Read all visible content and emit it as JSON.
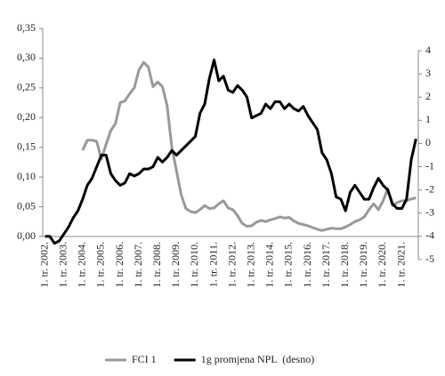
{
  "chart_data": {
    "type": "line",
    "categories": [
      "1. tr. 2002.",
      null,
      null,
      null,
      "1. tr. 2003.",
      null,
      null,
      null,
      "1. tr. 2004.",
      null,
      null,
      null,
      "1. tr. 2005.",
      null,
      null,
      null,
      "1. tr. 2006.",
      null,
      null,
      null,
      "1. tr. 2007.",
      null,
      null,
      null,
      "1. tr. 2008.",
      null,
      null,
      null,
      "1. tr. 2009.",
      null,
      null,
      null,
      "1. tr. 2010.",
      null,
      null,
      null,
      "1. tr. 2011.",
      null,
      null,
      null,
      "1. tr. 2012.",
      null,
      null,
      null,
      "1. tr. 2013.",
      null,
      null,
      null,
      "1. tr. 2014.",
      null,
      null,
      null,
      "1. tr. 2015.",
      null,
      null,
      null,
      "1. tr. 2016.",
      null,
      null,
      null,
      "1. tr. 2017.",
      null,
      null,
      null,
      "1. tr. 2018.",
      null,
      null,
      null,
      "1. tr. 2019.",
      null,
      null,
      null,
      "1. tr. 2020.",
      null,
      null,
      null,
      "1. tr. 2021.",
      null,
      null,
      null
    ],
    "series": [
      {
        "name": "FCI 1",
        "color": "#999999",
        "values": [
          null,
          null,
          null,
          null,
          null,
          null,
          null,
          null,
          0.145,
          0.162,
          0.162,
          0.16,
          0.13,
          0.155,
          0.178,
          0.19,
          0.225,
          0.228,
          0.24,
          0.25,
          0.28,
          0.293,
          0.285,
          0.252,
          0.26,
          0.252,
          0.22,
          0.15,
          0.11,
          0.07,
          0.047,
          0.042,
          0.04,
          0.045,
          0.052,
          0.047,
          0.048,
          0.055,
          0.06,
          0.048,
          0.045,
          0.035,
          0.022,
          0.017,
          0.018,
          0.024,
          0.027,
          0.025,
          0.028,
          0.03,
          0.033,
          0.031,
          0.032,
          0.026,
          0.022,
          0.02,
          0.018,
          0.015,
          0.012,
          0.01,
          0.012,
          0.014,
          0.013,
          0.013,
          0.016,
          0.02,
          0.025,
          0.028,
          0.033,
          0.045,
          0.055,
          0.045,
          0.06,
          0.08,
          0.052,
          0.057,
          0.06,
          0.06,
          0.063,
          0.065
        ]
      },
      {
        "name": "1g promjena NPL  (desno)",
        "color": "#000000",
        "axis": "y2",
        "values": [
          -4.0,
          -4.0,
          -4.3,
          -4.2,
          -3.9,
          -3.6,
          -3.2,
          -2.9,
          -2.4,
          -1.8,
          -1.5,
          -1.0,
          -0.5,
          -0.5,
          -1.3,
          -1.6,
          -1.8,
          -1.7,
          -1.3,
          -1.4,
          -1.3,
          -1.1,
          -1.1,
          -1.0,
          -0.6,
          -0.8,
          -0.6,
          -0.3,
          -0.5,
          -0.3,
          -0.1,
          0.1,
          0.3,
          1.3,
          1.7,
          2.8,
          3.6,
          2.7,
          2.9,
          2.3,
          2.2,
          2.5,
          2.3,
          2.0,
          1.1,
          1.2,
          1.3,
          1.7,
          1.5,
          1.8,
          1.8,
          1.5,
          1.7,
          1.5,
          1.4,
          1.6,
          1.2,
          0.9,
          0.6,
          -0.4,
          -0.7,
          -1.3,
          -2.3,
          -2.4,
          -2.9,
          -2.1,
          -1.8,
          -2.1,
          -2.4,
          -2.4,
          -1.9,
          -1.5,
          -1.8,
          -2.0,
          -2.6,
          -2.8,
          -2.8,
          -2.4,
          -0.7,
          0.2
        ]
      }
    ],
    "ylim": [
      0,
      0.35
    ],
    "yticks": [
      {
        "value": 0,
        "label": "0,00"
      },
      {
        "value": 0.05,
        "label": "0,05"
      },
      {
        "value": 0.1,
        "label": "0,10"
      },
      {
        "value": 0.15,
        "label": "0,15"
      },
      {
        "value": 0.2,
        "label": "0,20"
      },
      {
        "value": 0.25,
        "label": "0,25"
      },
      {
        "value": 0.3,
        "label": "0,30"
      },
      {
        "value": 0.35,
        "label": "0,35"
      }
    ],
    "y2lim": [
      -5,
      4
    ],
    "y2ticks": [
      -5,
      -4,
      -3,
      -2,
      -1,
      0,
      1,
      2,
      3,
      4
    ],
    "legend": "bottom"
  }
}
